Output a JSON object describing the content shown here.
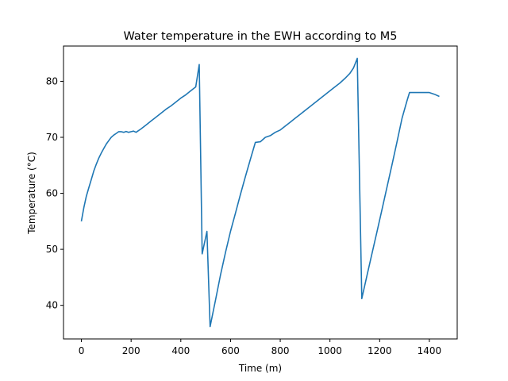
{
  "chart_data": {
    "type": "line",
    "title": "Water temperature in the EWH according to M5",
    "xlabel": "Time (m)",
    "ylabel": "Temperature (°C)",
    "xlim": [
      -72,
      1512
    ],
    "ylim": [
      34,
      86.3
    ],
    "grid": false,
    "x_ticks": [
      0,
      200,
      400,
      600,
      800,
      1000,
      1200,
      1400
    ],
    "y_ticks": [
      40,
      50,
      60,
      70,
      80
    ],
    "series": [
      {
        "color": "#1f77b4",
        "points": [
          [
            0,
            55
          ],
          [
            10,
            57.5
          ],
          [
            20,
            59.5
          ],
          [
            30,
            61
          ],
          [
            40,
            62.5
          ],
          [
            50,
            64
          ],
          [
            60,
            65.2
          ],
          [
            70,
            66.3
          ],
          [
            80,
            67.2
          ],
          [
            90,
            68
          ],
          [
            100,
            68.8
          ],
          [
            110,
            69.4
          ],
          [
            120,
            70
          ],
          [
            130,
            70.4
          ],
          [
            140,
            70.7
          ],
          [
            150,
            71
          ],
          [
            160,
            71
          ],
          [
            170,
            70.9
          ],
          [
            180,
            71.05
          ],
          [
            190,
            70.9
          ],
          [
            200,
            71
          ],
          [
            210,
            71.1
          ],
          [
            220,
            70.9
          ],
          [
            240,
            71.5
          ],
          [
            260,
            72.2
          ],
          [
            280,
            72.9
          ],
          [
            300,
            73.6
          ],
          [
            320,
            74.3
          ],
          [
            340,
            75
          ],
          [
            360,
            75.6
          ],
          [
            380,
            76.3
          ],
          [
            400,
            77
          ],
          [
            420,
            77.6
          ],
          [
            440,
            78.3
          ],
          [
            460,
            79
          ],
          [
            474,
            83
          ],
          [
            486,
            49.2
          ],
          [
            505,
            53.2
          ],
          [
            518,
            36.2
          ],
          [
            540,
            41
          ],
          [
            560,
            45.5
          ],
          [
            580,
            49.5
          ],
          [
            600,
            53.2
          ],
          [
            620,
            56.5
          ],
          [
            640,
            59.8
          ],
          [
            660,
            63
          ],
          [
            680,
            66.1
          ],
          [
            700,
            69.1
          ],
          [
            720,
            69.2
          ],
          [
            740,
            70
          ],
          [
            760,
            70.3
          ],
          [
            780,
            70.9
          ],
          [
            800,
            71.3
          ],
          [
            820,
            72
          ],
          [
            840,
            72.7
          ],
          [
            860,
            73.4
          ],
          [
            880,
            74.1
          ],
          [
            900,
            74.8
          ],
          [
            920,
            75.5
          ],
          [
            940,
            76.2
          ],
          [
            960,
            76.9
          ],
          [
            980,
            77.6
          ],
          [
            1000,
            78.3
          ],
          [
            1020,
            79
          ],
          [
            1040,
            79.7
          ],
          [
            1060,
            80.5
          ],
          [
            1080,
            81.4
          ],
          [
            1095,
            82.4
          ],
          [
            1110,
            84.1
          ],
          [
            1128,
            41.2
          ],
          [
            1150,
            45.5
          ],
          [
            1170,
            49.4
          ],
          [
            1190,
            53.3
          ],
          [
            1210,
            57.2
          ],
          [
            1230,
            61.2
          ],
          [
            1250,
            65.2
          ],
          [
            1270,
            69.2
          ],
          [
            1290,
            73.4
          ],
          [
            1310,
            76.5
          ],
          [
            1320,
            78
          ],
          [
            1340,
            78
          ],
          [
            1360,
            78
          ],
          [
            1380,
            78
          ],
          [
            1400,
            78
          ],
          [
            1420,
            77.7
          ],
          [
            1440,
            77.3
          ]
        ]
      }
    ]
  }
}
